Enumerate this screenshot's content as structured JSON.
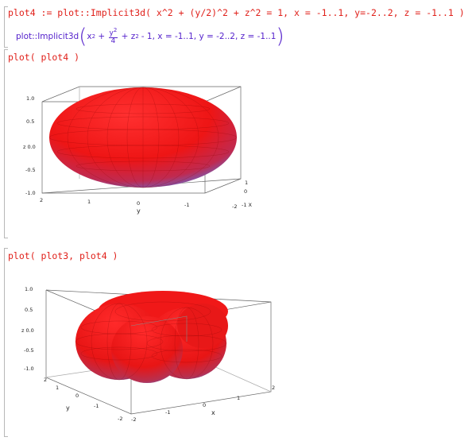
{
  "cell1": {
    "input": "plot4 := plot::Implicit3d( x^2 + (y/2)^2 + z^2 = 1, x = -1..1, y=-2..2, z = -1..1 )",
    "output": {
      "func": "plot::Implicit3d",
      "x_term": "x",
      "y_num": "y",
      "y_den": "4",
      "z_term": "z",
      "exp": "2",
      "rest": "- 1, x = -1..1, y = -2..2, z = -1..1"
    }
  },
  "cell2": {
    "input": "plot( plot4 )",
    "plot": {
      "z_ticks": [
        "1.0",
        "0.5",
        "z 0.0",
        "-0.5",
        "-1.0"
      ],
      "y_ticks": [
        "2",
        "1",
        "0",
        "-1",
        "-2"
      ],
      "x_ticks": [
        "1",
        "0",
        "-1 X"
      ],
      "y_label": "y"
    }
  },
  "cell3": {
    "input": "plot( plot3, plot4 )",
    "plot": {
      "z_ticks": [
        "1.0",
        "0.5",
        "z 0.0",
        "-0.5",
        "-1.0"
      ],
      "y_ticks": [
        "2",
        "1",
        "0",
        "-1",
        "-2"
      ],
      "x_ticks": [
        "-2",
        "-1",
        "0",
        "1",
        "2"
      ],
      "y_label": "y",
      "x_label": "x"
    }
  },
  "colors": {
    "command": "#e0201a",
    "result": "#5522cc",
    "surface_top": "#ff1a1a",
    "surface_bottom": "#5a6fe0"
  }
}
